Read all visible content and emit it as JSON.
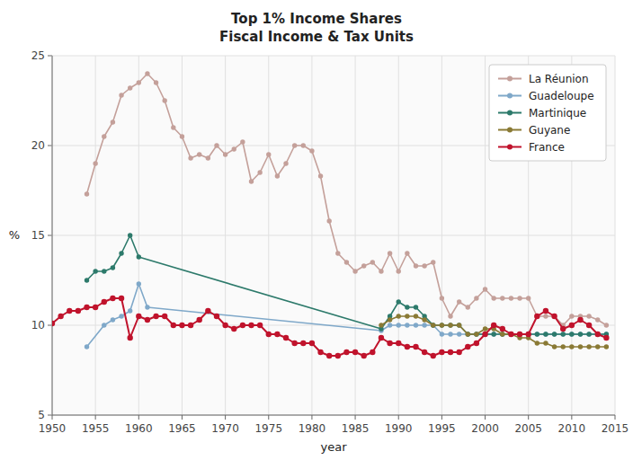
{
  "chart_data": {
    "type": "line",
    "title": "Top 1% Income Shares\nFiscal Income & Tax Units",
    "x_label": "year",
    "y_label": "%",
    "xlim": [
      1950,
      2015
    ],
    "ylim": [
      5,
      25
    ],
    "xticks": [
      1950,
      1955,
      1960,
      1965,
      1970,
      1975,
      1980,
      1985,
      1990,
      1995,
      2000,
      2005,
      2010,
      2015
    ],
    "yticks": [
      5,
      10,
      15,
      20,
      25
    ],
    "grid": true,
    "legend": "upper right",
    "marker": "circle",
    "series": [
      {
        "name": "La Réunion",
        "color": "#c4a09a",
        "x": [
          1954,
          1955,
          1956,
          1957,
          1958,
          1959,
          1960,
          1961,
          1962,
          1963,
          1964,
          1965,
          1966,
          1967,
          1968,
          1969,
          1970,
          1971,
          1972,
          1973,
          1974,
          1975,
          1976,
          1977,
          1978,
          1979,
          1980,
          1981,
          1982,
          1983,
          1984,
          1985,
          1986,
          1987,
          1988,
          1989,
          1990,
          1991,
          1992,
          1993,
          1994,
          1995,
          1996,
          1997,
          1998,
          1999,
          2000,
          2001,
          2002,
          2003,
          2004,
          2005,
          2006,
          2007,
          2008,
          2009,
          2010,
          2011,
          2012,
          2013,
          2014
        ],
        "values": [
          17.3,
          19.0,
          20.5,
          21.3,
          22.8,
          23.2,
          23.5,
          24.0,
          23.5,
          22.5,
          21.0,
          20.5,
          19.3,
          19.5,
          19.3,
          20.0,
          19.5,
          19.8,
          20.2,
          18.0,
          18.5,
          19.5,
          18.3,
          19.0,
          20.0,
          20.0,
          19.7,
          18.3,
          15.8,
          14.0,
          13.5,
          13.0,
          13.3,
          13.5,
          13.0,
          14.0,
          13.0,
          14.0,
          13.3,
          13.3,
          13.5,
          11.5,
          10.5,
          11.3,
          11.0,
          11.5,
          12.0,
          11.5,
          11.5,
          11.5,
          11.5,
          11.5,
          10.5,
          10.5,
          10.5,
          10.0,
          10.5,
          10.5,
          10.5,
          10.3,
          10.0
        ]
      },
      {
        "name": "Guadeloupe",
        "color": "#7fa8c9",
        "x": [
          1954,
          1956,
          1957,
          1958,
          1959,
          1960,
          1961,
          1988,
          1989,
          1990,
          1991,
          1992,
          1993,
          1994,
          1995,
          1996,
          1997,
          1998,
          1999,
          2000,
          2001,
          2002,
          2003,
          2004,
          2005,
          2006,
          2007,
          2008,
          2009,
          2010,
          2011,
          2012,
          2013,
          2014
        ],
        "values": [
          8.8,
          10.0,
          10.3,
          10.5,
          10.8,
          12.3,
          11.0,
          9.7,
          10.0,
          10.0,
          10.0,
          10.0,
          10.0,
          10.0,
          9.5,
          9.5,
          9.5,
          9.5,
          9.5,
          9.5,
          9.5,
          9.5,
          9.5,
          9.5,
          9.5,
          9.5,
          9.5,
          9.5,
          9.5,
          9.5,
          9.5,
          9.5,
          9.5,
          9.5
        ]
      },
      {
        "name": "Martinique",
        "color": "#2d7a6b",
        "x": [
          1954,
          1955,
          1956,
          1957,
          1958,
          1959,
          1960,
          1988,
          1989,
          1990,
          1991,
          1992,
          1993,
          1994,
          1995,
          1996,
          1997,
          1998,
          1999,
          2000,
          2001,
          2002,
          2003,
          2004,
          2005,
          2006,
          2007,
          2008,
          2009,
          2010,
          2011,
          2012,
          2013,
          2014
        ],
        "values": [
          12.5,
          13.0,
          13.0,
          13.2,
          14.0,
          15.0,
          13.8,
          9.8,
          10.5,
          11.3,
          11.0,
          11.0,
          10.5,
          10.0,
          10.0,
          10.0,
          10.0,
          9.5,
          9.5,
          9.5,
          9.5,
          9.5,
          9.5,
          9.5,
          9.5,
          9.5,
          9.5,
          9.5,
          9.5,
          9.5,
          9.5,
          9.5,
          9.5,
          9.5
        ]
      },
      {
        "name": "Guyane",
        "color": "#8a7a35",
        "x": [
          1988,
          1989,
          1990,
          1991,
          1992,
          1993,
          1994,
          1995,
          1996,
          1997,
          1998,
          1999,
          2000,
          2001,
          2002,
          2003,
          2004,
          2005,
          2006,
          2007,
          2008,
          2009,
          2010,
          2011,
          2012,
          2013,
          2014
        ],
        "values": [
          10.0,
          10.3,
          10.5,
          10.5,
          10.5,
          10.3,
          10.0,
          10.0,
          10.0,
          10.0,
          9.5,
          9.5,
          9.8,
          9.8,
          9.5,
          9.5,
          9.3,
          9.3,
          9.0,
          9.0,
          8.8,
          8.8,
          8.8,
          8.8,
          8.8,
          8.8,
          8.8
        ]
      },
      {
        "name": "France",
        "color": "#c0132c",
        "x": [
          1950,
          1951,
          1952,
          1953,
          1954,
          1955,
          1956,
          1957,
          1958,
          1959,
          1960,
          1961,
          1962,
          1963,
          1964,
          1965,
          1966,
          1967,
          1968,
          1969,
          1970,
          1971,
          1972,
          1973,
          1974,
          1975,
          1976,
          1977,
          1978,
          1979,
          1980,
          1981,
          1982,
          1983,
          1984,
          1985,
          1986,
          1987,
          1988,
          1989,
          1990,
          1991,
          1992,
          1993,
          1994,
          1995,
          1996,
          1997,
          1998,
          1999,
          2000,
          2001,
          2002,
          2003,
          2004,
          2005,
          2006,
          2007,
          2008,
          2009,
          2010,
          2011,
          2012,
          2013,
          2014
        ],
        "values": [
          10.1,
          10.5,
          10.8,
          10.8,
          11.0,
          11.0,
          11.3,
          11.5,
          11.5,
          9.3,
          10.5,
          10.3,
          10.5,
          10.5,
          10.0,
          10.0,
          10.0,
          10.3,
          10.8,
          10.5,
          10.0,
          9.8,
          10.0,
          10.0,
          10.0,
          9.5,
          9.5,
          9.3,
          9.0,
          9.0,
          9.0,
          8.5,
          8.3,
          8.3,
          8.5,
          8.5,
          8.3,
          8.5,
          9.3,
          9.0,
          9.0,
          8.8,
          8.8,
          8.5,
          8.3,
          8.5,
          8.5,
          8.5,
          8.8,
          9.0,
          9.5,
          10.0,
          9.8,
          9.5,
          9.5,
          9.5,
          10.5,
          10.8,
          10.5,
          9.8,
          10.0,
          10.3,
          10.0,
          9.5,
          9.3
        ]
      }
    ]
  }
}
